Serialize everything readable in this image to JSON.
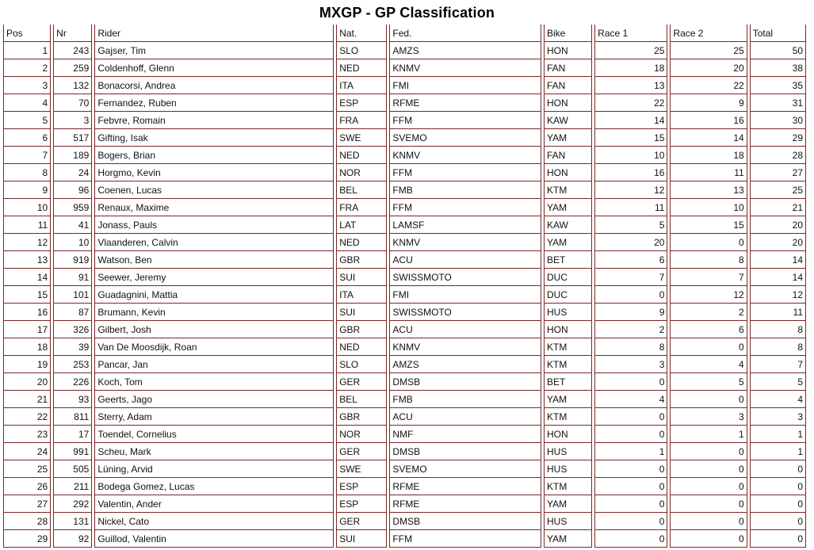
{
  "title": "MXGP - GP Classification",
  "colors": {
    "border": "#7b2727",
    "text": "#111111",
    "background": "#ffffff"
  },
  "table": {
    "columns": [
      {
        "key": "pos",
        "label": "Pos",
        "align": "right"
      },
      {
        "key": "nr",
        "label": "Nr",
        "align": "right"
      },
      {
        "key": "rider",
        "label": "Rider",
        "align": "left"
      },
      {
        "key": "nat",
        "label": "Nat.",
        "align": "left"
      },
      {
        "key": "fed",
        "label": "Fed.",
        "align": "left"
      },
      {
        "key": "bike",
        "label": "Bike",
        "align": "left"
      },
      {
        "key": "race1",
        "label": "Race 1",
        "align": "right"
      },
      {
        "key": "race2",
        "label": "Race 2",
        "align": "right"
      },
      {
        "key": "total",
        "label": "Total",
        "align": "right"
      }
    ],
    "rows": [
      [
        1,
        243,
        "Gajser, Tim",
        "SLO",
        "AMZS",
        "HON",
        25,
        25,
        50
      ],
      [
        2,
        259,
        "Coldenhoff, Glenn",
        "NED",
        "KNMV",
        "FAN",
        18,
        20,
        38
      ],
      [
        3,
        132,
        "Bonacorsi, Andrea",
        "ITA",
        "FMI",
        "FAN",
        13,
        22,
        35
      ],
      [
        4,
        70,
        "Fernandez, Ruben",
        "ESP",
        "RFME",
        "HON",
        22,
        9,
        31
      ],
      [
        5,
        3,
        "Febvre, Romain",
        "FRA",
        "FFM",
        "KAW",
        14,
        16,
        30
      ],
      [
        6,
        517,
        "Gifting, Isak",
        "SWE",
        "SVEMO",
        "YAM",
        15,
        14,
        29
      ],
      [
        7,
        189,
        "Bogers, Brian",
        "NED",
        "KNMV",
        "FAN",
        10,
        18,
        28
      ],
      [
        8,
        24,
        "Horgmo, Kevin",
        "NOR",
        "FFM",
        "HON",
        16,
        11,
        27
      ],
      [
        9,
        96,
        "Coenen, Lucas",
        "BEL",
        "FMB",
        "KTM",
        12,
        13,
        25
      ],
      [
        10,
        959,
        "Renaux, Maxime",
        "FRA",
        "FFM",
        "YAM",
        11,
        10,
        21
      ],
      [
        11,
        41,
        "Jonass, Pauls",
        "LAT",
        "LAMSF",
        "KAW",
        5,
        15,
        20
      ],
      [
        12,
        10,
        "Vlaanderen, Calvin",
        "NED",
        "KNMV",
        "YAM",
        20,
        0,
        20
      ],
      [
        13,
        919,
        "Watson, Ben",
        "GBR",
        "ACU",
        "BET",
        6,
        8,
        14
      ],
      [
        14,
        91,
        "Seewer, Jeremy",
        "SUI",
        "SWISSMOTO",
        "DUC",
        7,
        7,
        14
      ],
      [
        15,
        101,
        "Guadagnini, Mattia",
        "ITA",
        "FMI",
        "DUC",
        0,
        12,
        12
      ],
      [
        16,
        87,
        "Brumann, Kevin",
        "SUI",
        "SWISSMOTO",
        "HUS",
        9,
        2,
        11
      ],
      [
        17,
        326,
        "Gilbert, Josh",
        "GBR",
        "ACU",
        "HON",
        2,
        6,
        8
      ],
      [
        18,
        39,
        "Van De Moosdijk, Roan",
        "NED",
        "KNMV",
        "KTM",
        8,
        0,
        8
      ],
      [
        19,
        253,
        "Pancar, Jan",
        "SLO",
        "AMZS",
        "KTM",
        3,
        4,
        7
      ],
      [
        20,
        226,
        "Koch, Tom",
        "GER",
        "DMSB",
        "BET",
        0,
        5,
        5
      ],
      [
        21,
        93,
        "Geerts, Jago",
        "BEL",
        "FMB",
        "YAM",
        4,
        0,
        4
      ],
      [
        22,
        811,
        "Sterry, Adam",
        "GBR",
        "ACU",
        "KTM",
        0,
        3,
        3
      ],
      [
        23,
        17,
        "Toendel, Cornelius",
        "NOR",
        "NMF",
        "HON",
        0,
        1,
        1
      ],
      [
        24,
        991,
        "Scheu, Mark",
        "GER",
        "DMSB",
        "HUS",
        1,
        0,
        1
      ],
      [
        25,
        505,
        "Lüning, Arvid",
        "SWE",
        "SVEMO",
        "HUS",
        0,
        0,
        0
      ],
      [
        26,
        211,
        "Bodega Gomez, Lucas",
        "ESP",
        "RFME",
        "KTM",
        0,
        0,
        0
      ],
      [
        27,
        292,
        "Valentin, Ander",
        "ESP",
        "RFME",
        "YAM",
        0,
        0,
        0
      ],
      [
        28,
        131,
        "Nickel, Cato",
        "GER",
        "DMSB",
        "HUS",
        0,
        0,
        0
      ],
      [
        29,
        92,
        "Guillod, Valentin",
        "SUI",
        "FFM",
        "YAM",
        0,
        0,
        0
      ]
    ]
  }
}
